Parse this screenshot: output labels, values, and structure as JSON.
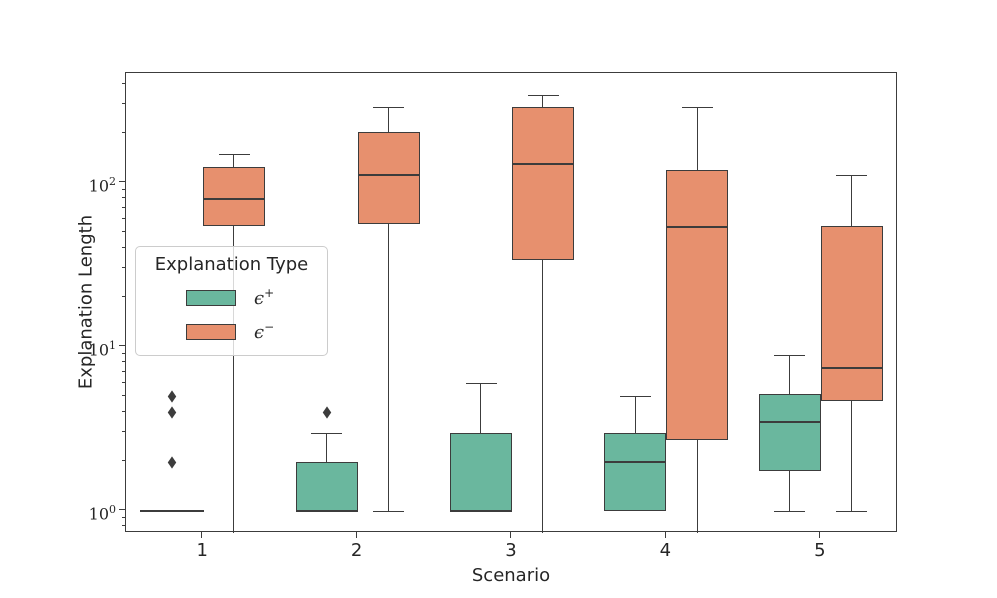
{
  "chart_data": {
    "type": "boxplot",
    "title": "",
    "xlabel": "Scenario",
    "ylabel": "Explanation Length",
    "y_scale": "log",
    "ylim": [
      0.73,
      470
    ],
    "grid": false,
    "categories": [
      "1",
      "2",
      "3",
      "4",
      "5"
    ],
    "y_major_ticks": [
      {
        "base": "10",
        "exp": "0",
        "value": 1
      },
      {
        "base": "10",
        "exp": "1",
        "value": 10
      },
      {
        "base": "10",
        "exp": "2",
        "value": 100
      }
    ],
    "legend": {
      "title": "Explanation Type",
      "position": "center-left",
      "entries": [
        {
          "symbol": "ϵ",
          "sup": "+",
          "color": "#6ab79e"
        },
        {
          "symbol": "ϵ",
          "sup": "−",
          "color": "#e7906e"
        }
      ]
    },
    "colors": {
      "axis": "#3c3c3c",
      "epsilon_plus": "#6ab79e",
      "epsilon_minus": "#e7906e",
      "background": "#ffffff"
    },
    "series": [
      {
        "name": "ϵ+",
        "key": "epsilon-plus",
        "color": "#6ab79e",
        "boxes": [
          {
            "category": "1",
            "whisker_low": 1,
            "q1": 1,
            "median": 1,
            "q3": 1,
            "whisker_high": 1,
            "outliers": [
              2,
              4,
              5
            ],
            "clipped_low": false
          },
          {
            "category": "2",
            "whisker_low": 1,
            "q1": 1,
            "median": 1,
            "q3": 2,
            "whisker_high": 3,
            "outliers": [
              4
            ],
            "clipped_low": false
          },
          {
            "category": "3",
            "whisker_low": 1,
            "q1": 1,
            "median": 1,
            "q3": 3,
            "whisker_high": 6,
            "outliers": [],
            "clipped_low": false
          },
          {
            "category": "4",
            "whisker_low": 1,
            "q1": 1,
            "median": 2,
            "q3": 3,
            "whisker_high": 5,
            "outliers": [],
            "clipped_low": false
          },
          {
            "category": "5",
            "whisker_low": 1,
            "q1": 1.75,
            "median": 3.5,
            "q3": 5.2,
            "whisker_high": 9,
            "outliers": [],
            "clipped_low": false
          }
        ]
      },
      {
        "name": "ϵ−",
        "key": "epsilon-minus",
        "color": "#e7906e",
        "boxes": [
          {
            "category": "1",
            "whisker_low": null,
            "q1": 55,
            "median": 80,
            "q3": 125,
            "whisker_high": 150,
            "outliers": [],
            "clipped_low": true
          },
          {
            "category": "2",
            "whisker_low": 1,
            "q1": 56,
            "median": 112,
            "q3": 205,
            "whisker_high": 290,
            "outliers": [],
            "clipped_low": false
          },
          {
            "category": "3",
            "whisker_low": null,
            "q1": 34,
            "median": 130,
            "q3": 290,
            "whisker_high": 345,
            "outliers": [],
            "clipped_low": true
          },
          {
            "category": "4",
            "whisker_low": null,
            "q1": 2.7,
            "median": 54,
            "q3": 120,
            "whisker_high": 290,
            "outliers": [],
            "clipped_low": true
          },
          {
            "category": "5",
            "whisker_low": 1,
            "q1": 4.7,
            "median": 7.4,
            "q3": 55,
            "whisker_high": 112,
            "outliers": [],
            "clipped_low": false
          }
        ]
      }
    ]
  }
}
